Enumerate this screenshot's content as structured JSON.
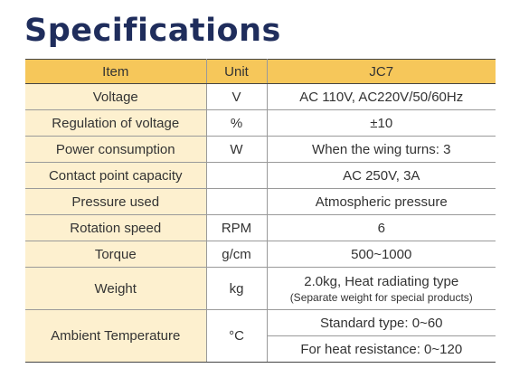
{
  "title": "Specifications",
  "table": {
    "headers": [
      "Item",
      "Unit",
      "JC7"
    ],
    "rows": {
      "voltage": {
        "item": "Voltage",
        "unit": "V",
        "value": "AC 110V, AC220V/50/60Hz"
      },
      "regulation": {
        "item": "Regulation of voltage",
        "unit": "%",
        "value": "±10"
      },
      "power": {
        "item": "Power consumption",
        "unit": "W",
        "value": "When the wing turns: 3"
      },
      "contact": {
        "item": "Contact point capacity",
        "unit": "",
        "value": "AC 250V, 3A"
      },
      "pressure": {
        "item": "Pressure used",
        "unit": "",
        "value": "Atmospheric pressure"
      },
      "rotation": {
        "item": "Rotation speed",
        "unit": "RPM",
        "value": "6"
      },
      "torque": {
        "item": "Torque",
        "unit": "g/cm",
        "value": "500~1000"
      },
      "weight": {
        "item": "Weight",
        "unit": "kg",
        "value": "2.0kg, Heat radiating type",
        "note": "(Separate weight for special products)"
      },
      "ambient": {
        "item": "Ambient Temperature",
        "unit": "°C",
        "value_1": "Standard type: 0~60",
        "value_2": "For heat resistance: 0~120"
      }
    }
  }
}
